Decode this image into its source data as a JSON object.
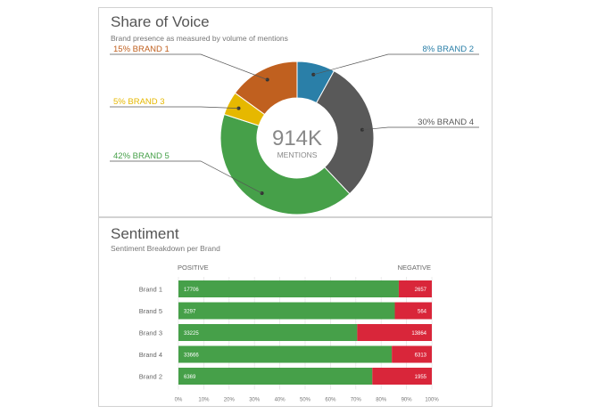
{
  "share_of_voice": {
    "title": "Share of Voice",
    "subtitle": "Brand presence as measured by volume of mentions",
    "center_value": "914K",
    "center_label": "MENTIONS"
  },
  "sentiment": {
    "title": "Sentiment",
    "subtitle": "Sentiment Breakdown per Brand",
    "positive_label": "POSITIVE",
    "negative_label": "NEGATIVE"
  },
  "colors": {
    "brand1": "#c0601f",
    "brand2": "#2a7fa8",
    "brand3": "#e6b800",
    "brand4": "#595959",
    "brand5": "#46a049",
    "positive": "#46a049",
    "negative": "#d9263a"
  },
  "chart_data": [
    {
      "type": "pie",
      "title": "Share of Voice",
      "subtitle": "Brand presence as measured by volume of mentions",
      "unit": "%",
      "slices": [
        {
          "name": "BRAND 2",
          "value": 8,
          "label": "8% BRAND 2",
          "color": "#2a7fa8"
        },
        {
          "name": "BRAND 4",
          "value": 30,
          "label": "30% BRAND 4",
          "color": "#595959"
        },
        {
          "name": "BRAND 5",
          "value": 42,
          "label": "42% BRAND 5",
          "color": "#46a049"
        },
        {
          "name": "BRAND 3",
          "value": 5,
          "label": "5% BRAND 3",
          "color": "#e6b800"
        },
        {
          "name": "BRAND 1",
          "value": 15,
          "label": "15% BRAND 1",
          "color": "#c0601f"
        }
      ]
    },
    {
      "type": "bar",
      "orientation": "horizontal",
      "stacked": "percent",
      "title": "Sentiment",
      "subtitle": "Sentiment Breakdown per Brand",
      "categories": [
        "Brand 1",
        "Brand 5",
        "Brand 3",
        "Brand 4",
        "Brand 2"
      ],
      "series": [
        {
          "name": "POSITIVE",
          "values": [
            17706,
            3297,
            33225,
            33666,
            6369
          ],
          "color": "#46a049"
        },
        {
          "name": "NEGATIVE",
          "values": [
            2657,
            564,
            13864,
            6313,
            1955
          ],
          "color": "#d9263a"
        }
      ],
      "x_ticks": [
        "0%",
        "10%",
        "20%",
        "30%",
        "40%",
        "50%",
        "60%",
        "70%",
        "80%",
        "90%",
        "100%"
      ],
      "xlim": [
        0,
        100
      ]
    }
  ]
}
